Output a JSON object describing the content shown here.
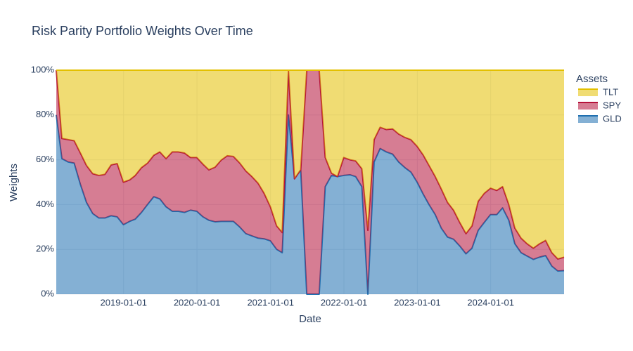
{
  "chart_data": {
    "type": "stacked_area",
    "title": "Risk Parity Portfolio Weights Over Time",
    "xlabel": "Date",
    "ylabel": "Weights",
    "legend_title": "Assets",
    "legend": "right",
    "grid": true,
    "x": [
      "2018-01-31",
      "2018-02-28",
      "2018-03-31",
      "2018-04-30",
      "2018-05-31",
      "2018-06-30",
      "2018-07-31",
      "2018-08-31",
      "2018-09-30",
      "2018-10-31",
      "2018-11-30",
      "2018-12-31",
      "2019-01-31",
      "2019-02-28",
      "2019-03-31",
      "2019-04-30",
      "2019-05-31",
      "2019-06-30",
      "2019-07-31",
      "2019-08-31",
      "2019-09-30",
      "2019-10-31",
      "2019-11-30",
      "2019-12-31",
      "2020-01-31",
      "2020-02-29",
      "2020-03-31",
      "2020-04-30",
      "2020-05-31",
      "2020-06-30",
      "2020-07-31",
      "2020-08-31",
      "2020-09-30",
      "2020-10-31",
      "2020-11-30",
      "2020-12-31",
      "2021-01-31",
      "2021-02-28",
      "2021-03-31",
      "2021-04-30",
      "2021-05-31",
      "2021-06-30",
      "2021-07-31",
      "2021-08-31",
      "2021-09-30",
      "2021-10-31",
      "2021-11-30",
      "2021-12-31",
      "2022-01-31",
      "2022-02-28",
      "2022-03-31",
      "2022-04-30",
      "2022-05-31",
      "2022-06-30",
      "2022-07-31",
      "2022-08-31",
      "2022-09-30",
      "2022-10-31",
      "2022-11-30",
      "2022-12-31",
      "2023-01-31",
      "2023-02-28",
      "2023-03-31",
      "2023-04-30",
      "2023-05-31",
      "2023-06-30",
      "2023-07-31",
      "2023-08-31",
      "2023-09-30",
      "2023-10-31",
      "2023-11-30",
      "2023-12-31",
      "2024-01-31",
      "2024-02-29",
      "2024-03-31",
      "2024-04-30",
      "2024-05-31",
      "2024-06-30",
      "2024-07-31",
      "2024-08-31",
      "2024-09-30",
      "2024-10-31",
      "2024-11-30",
      "2024-12-31"
    ],
    "xlim": [
      "2018-01-31",
      "2024-12-31"
    ],
    "xticks": [
      "2019-01-01",
      "2020-01-01",
      "2021-01-01",
      "2022-01-01",
      "2023-01-01",
      "2024-01-01"
    ],
    "ylim": [
      0,
      100
    ],
    "yticks": [
      {
        "value": 0,
        "label": "0%"
      },
      {
        "value": 20,
        "label": "20%"
      },
      {
        "value": 40,
        "label": "40%"
      },
      {
        "value": 60,
        "label": "60%"
      },
      {
        "value": 80,
        "label": "80%"
      },
      {
        "value": 100,
        "label": "100%"
      }
    ],
    "series": [
      {
        "name": "GLD",
        "color": "#1f6fb0",
        "values": [
          80,
          60.5,
          59,
          58.5,
          49,
          41,
          36,
          34,
          34,
          35,
          34.5,
          31,
          32.5,
          33.5,
          36.5,
          40,
          43.5,
          42.5,
          39,
          37,
          37,
          36.5,
          37.5,
          37,
          34.5,
          33,
          32.3,
          32.5,
          32.5,
          32.5,
          30,
          27,
          26,
          25,
          24.7,
          23.8,
          20,
          18.5,
          80,
          51.5,
          55.5,
          0,
          0,
          0,
          48,
          53,
          52.5,
          53,
          53.3,
          52.5,
          48,
          0,
          59,
          65,
          63.5,
          62.5,
          59,
          56.5,
          54.5,
          50,
          44.5,
          40,
          35.5,
          29.5,
          25.5,
          24.5,
          21.5,
          18,
          20.5,
          28.5,
          32,
          35.5,
          35.5,
          38.5,
          33,
          22.5,
          18.5,
          17,
          15.5,
          16.5,
          17.2,
          12.5,
          10.3,
          10.5
        ]
      },
      {
        "name": "SPY",
        "color": "#b5123a",
        "values": [
          20,
          9,
          10,
          10,
          14,
          16.5,
          17.8,
          19,
          19.5,
          22.7,
          23.8,
          19,
          18.5,
          19.5,
          20,
          18.5,
          18.5,
          21,
          21.5,
          26.5,
          26.5,
          26.5,
          23.5,
          24,
          23.5,
          22.5,
          24.4,
          27.3,
          29.3,
          29,
          28.6,
          28,
          26.5,
          24.5,
          20.3,
          15.2,
          10.5,
          9,
          20,
          0,
          0,
          100,
          100,
          100,
          13,
          1,
          0,
          8,
          6.7,
          7,
          8,
          28.5,
          10,
          9.5,
          10,
          11.3,
          12.5,
          13.5,
          14.5,
          16,
          17.5,
          17.5,
          17,
          17.5,
          15.5,
          13,
          10.5,
          9,
          10,
          13,
          13,
          11.8,
          10.8,
          9.5,
          7,
          7,
          6.5,
          5.5,
          5,
          6,
          6.8,
          6,
          5.4,
          6
        ]
      },
      {
        "name": "TLT",
        "color": "#e3c000",
        "values": [
          0,
          30.5,
          31,
          31.5,
          37,
          42.5,
          46.2,
          47,
          46.5,
          42.3,
          41.7,
          50,
          49,
          47,
          43.5,
          41.5,
          38,
          36.5,
          39.5,
          36.5,
          36.5,
          37,
          39,
          39,
          42,
          44.5,
          43.3,
          40.2,
          38.2,
          38.5,
          41.4,
          45,
          47.5,
          50.5,
          55,
          61,
          69.5,
          72.5,
          0,
          48.5,
          44.5,
          0,
          0,
          0,
          39,
          46,
          47.5,
          39,
          40,
          40.5,
          44,
          71.5,
          31,
          25.5,
          26.5,
          26.2,
          28.5,
          30,
          31,
          34,
          38,
          42.5,
          47.5,
          53,
          59,
          62.5,
          68,
          73,
          69.5,
          58.5,
          55,
          52.7,
          53.7,
          52,
          60,
          70.5,
          75,
          77.5,
          79.5,
          77.5,
          76,
          81.5,
          84.3,
          83.5
        ]
      }
    ]
  }
}
